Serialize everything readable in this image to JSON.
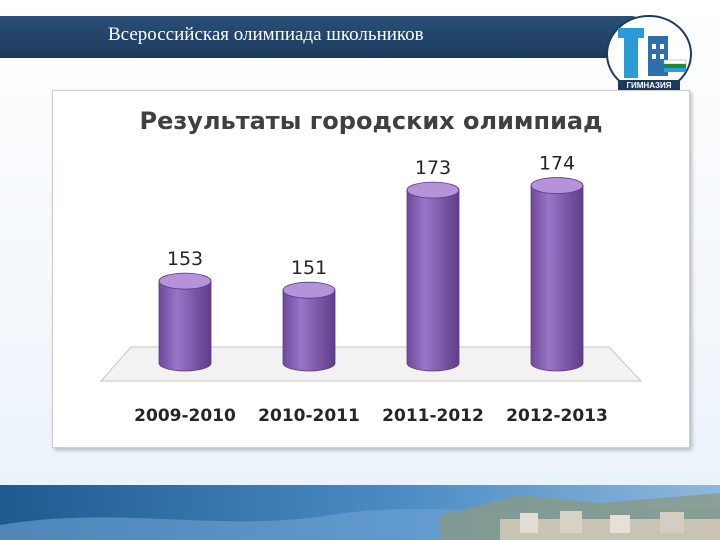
{
  "header": {
    "title": "Всероссийская олимпиада школьников",
    "logo_caption": "ГИМНАЗИЯ"
  },
  "colors": {
    "title_bar": "#1c3a5e",
    "bar_fill": "#8a62b6",
    "bar_top": "#b593d8",
    "floor": "#f2f2f2",
    "background": "#ffffff"
  },
  "chart_data": {
    "type": "bar",
    "title": "Результаты городских олимпиад",
    "categories": [
      "2009-2010",
      "2010-2011",
      "2011-2012",
      "2012-2013"
    ],
    "values": [
      153,
      151,
      173,
      174
    ],
    "value_labels": [
      "153",
      "151",
      "173",
      "174"
    ],
    "style": "3d-cylinder",
    "grid": false,
    "legend": "none",
    "ylim": [
      135,
      178
    ]
  }
}
